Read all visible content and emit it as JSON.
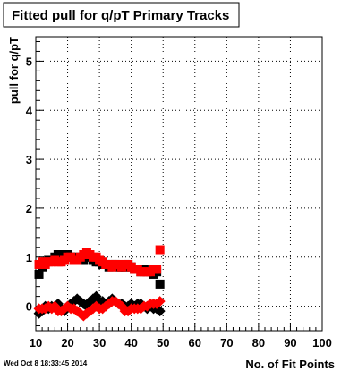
{
  "chart_data": {
    "type": "scatter",
    "title": "Fitted pull for q/pT Primary Tracks",
    "xlabel": "No. of Fit Points",
    "ylabel": "pull for q/pT",
    "xlim": [
      10,
      100
    ],
    "ylim": [
      -0.5,
      5.5
    ],
    "x_ticks": [
      "10",
      "20",
      "30",
      "40",
      "50",
      "60",
      "70",
      "80",
      "90",
      "100"
    ],
    "y_ticks": [
      "0",
      "1",
      "2",
      "3",
      "4",
      "5"
    ],
    "grid": true,
    "timestamp": "Wed Oct  8 18:33:45 2014",
    "series": [
      {
        "marker": "square",
        "color": "#000000",
        "x": [
          11,
          12,
          13,
          14,
          15,
          16,
          17,
          18,
          19,
          20,
          21,
          22,
          23,
          24,
          25,
          26,
          27,
          28,
          29,
          30,
          31,
          32,
          33,
          34,
          35,
          36,
          37,
          38,
          39,
          40,
          41,
          42,
          43,
          44,
          45,
          46,
          47,
          48,
          49
        ],
        "y": [
          0.65,
          0.8,
          0.9,
          0.95,
          0.95,
          1.0,
          1.05,
          1.05,
          1.05,
          1.05,
          1.0,
          0.95,
          1.0,
          0.95,
          0.95,
          1.0,
          1.0,
          0.95,
          0.9,
          0.9,
          0.85,
          0.85,
          0.8,
          0.85,
          0.85,
          0.8,
          0.8,
          0.8,
          0.85,
          0.8,
          0.75,
          0.75,
          0.7,
          0.75,
          0.7,
          0.7,
          0.65,
          0.7,
          0.45
        ]
      },
      {
        "marker": "square",
        "color": "#ff0000",
        "x": [
          11,
          12,
          13,
          14,
          15,
          16,
          17,
          18,
          19,
          20,
          21,
          22,
          23,
          24,
          25,
          26,
          27,
          28,
          29,
          30,
          31,
          32,
          33,
          34,
          35,
          36,
          37,
          38,
          39,
          40,
          41,
          42,
          43,
          44,
          45,
          46,
          47,
          48,
          49
        ],
        "y": [
          0.85,
          0.9,
          0.85,
          0.9,
          0.9,
          0.95,
          0.9,
          0.9,
          0.95,
          1.0,
          1.0,
          0.95,
          0.95,
          1.0,
          1.05,
          1.1,
          1.05,
          1.0,
          1.0,
          0.95,
          0.9,
          0.85,
          0.85,
          0.8,
          0.85,
          0.85,
          0.8,
          0.85,
          0.85,
          0.8,
          0.75,
          0.75,
          0.7,
          0.7,
          0.7,
          0.7,
          0.75,
          0.75,
          1.15
        ]
      },
      {
        "marker": "diamond",
        "color": "#000000",
        "x": [
          11,
          12,
          13,
          14,
          15,
          16,
          17,
          18,
          19,
          20,
          21,
          22,
          23,
          24,
          25,
          26,
          27,
          28,
          29,
          30,
          31,
          32,
          33,
          34,
          35,
          36,
          37,
          38,
          39,
          40,
          41,
          42,
          43,
          44,
          45,
          46,
          47,
          48,
          49
        ],
        "y": [
          -0.15,
          -0.1,
          0.0,
          -0.05,
          0.0,
          0.0,
          0.05,
          -0.05,
          -0.1,
          0.0,
          0.05,
          0.1,
          0.15,
          0.1,
          0.05,
          0.0,
          0.1,
          0.15,
          0.2,
          0.1,
          0.1,
          0.05,
          0.1,
          0.15,
          0.1,
          0.05,
          0.05,
          0.0,
          0.0,
          0.05,
          0.0,
          0.05,
          0.05,
          0.0,
          -0.05,
          0.0,
          -0.05,
          -0.05,
          -0.1
        ]
      },
      {
        "marker": "diamond",
        "color": "#ff0000",
        "x": [
          11,
          12,
          13,
          14,
          15,
          16,
          17,
          18,
          19,
          20,
          21,
          22,
          23,
          24,
          25,
          26,
          27,
          28,
          29,
          30,
          31,
          32,
          33,
          34,
          35,
          36,
          37,
          38,
          39,
          40,
          41,
          42,
          43,
          44,
          45,
          46,
          47,
          48,
          49
        ],
        "y": [
          -0.05,
          -0.05,
          -0.05,
          0.0,
          -0.05,
          0.0,
          -0.1,
          -0.1,
          -0.05,
          0.0,
          -0.05,
          -0.05,
          -0.1,
          -0.15,
          -0.2,
          -0.15,
          -0.1,
          -0.05,
          0.0,
          -0.05,
          -0.05,
          0.0,
          0.05,
          0.1,
          0.1,
          0.05,
          0.0,
          -0.1,
          -0.1,
          -0.05,
          -0.05,
          -0.05,
          -0.05,
          0.0,
          0.0,
          0.05,
          0.05,
          0.05,
          0.1
        ]
      }
    ]
  }
}
